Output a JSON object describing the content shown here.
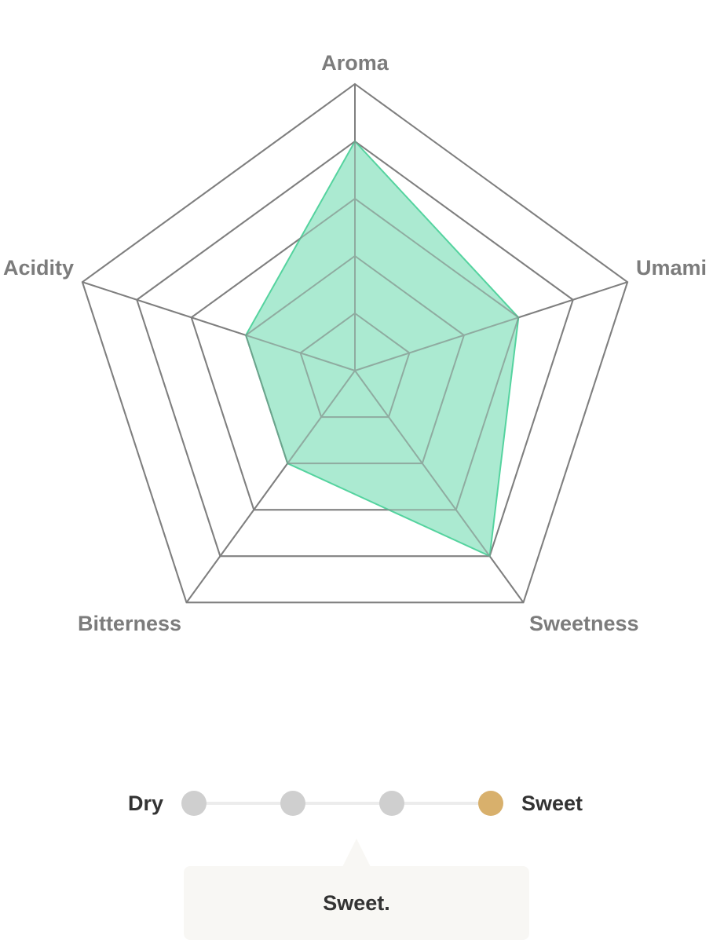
{
  "chart_data": {
    "type": "radar",
    "axes": [
      "Aroma",
      "Umami",
      "Sweetness",
      "Bitterness",
      "Acidity"
    ],
    "values": [
      4,
      3,
      4,
      2,
      2
    ],
    "range": [
      0,
      5
    ],
    "rings": 5,
    "grid": true,
    "fill_color": "#a6e9cf",
    "stroke_color": "#55d39f",
    "grid_color": "#7f7f7f"
  },
  "scale": {
    "left_label": "Dry",
    "right_label": "Sweet",
    "steps": 4,
    "selected_index": 3,
    "selected_color": "#d8b06c",
    "inactive_color": "#cfcfcf"
  },
  "callout": {
    "text": "Sweet."
  }
}
